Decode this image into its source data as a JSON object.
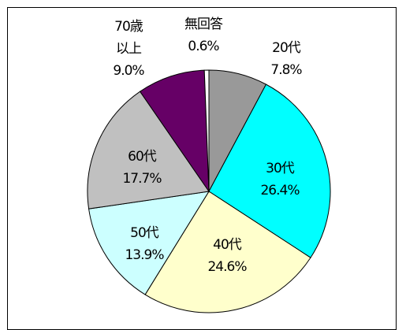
{
  "chart_data": {
    "type": "pie",
    "categories": [
      "20代",
      "30代",
      "40代",
      "50代",
      "60代",
      "70歳\n以上",
      "無回答"
    ],
    "values": [
      7.8,
      26.4,
      24.6,
      13.9,
      17.7,
      9.0,
      0.6
    ],
    "value_labels": [
      "7.8%",
      "26.4%",
      "24.6%",
      "13.9%",
      "17.7%",
      "9.0%",
      "0.6%"
    ],
    "colors": [
      "#999999",
      "#00ffff",
      "#ffffcc",
      "#ccffff",
      "#c0c0c0",
      "#660066",
      "#ffffff"
    ]
  }
}
